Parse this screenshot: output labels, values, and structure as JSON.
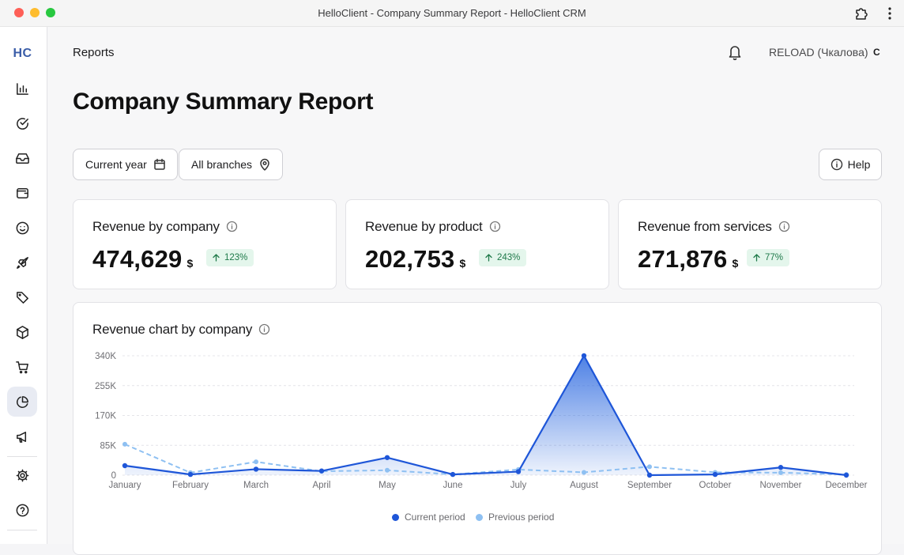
{
  "window": {
    "title": "HelloClient - Company Summary Report - HelloClient CRM"
  },
  "sidebar": {
    "logo": "HC",
    "items": [
      {
        "name": "analytics"
      },
      {
        "name": "tasks"
      },
      {
        "name": "inbox"
      },
      {
        "name": "wallet"
      },
      {
        "name": "clients"
      },
      {
        "name": "campaigns"
      },
      {
        "name": "tags"
      },
      {
        "name": "products"
      },
      {
        "name": "orders"
      },
      {
        "name": "reports",
        "active": true
      },
      {
        "name": "marketing"
      }
    ],
    "bottom_items": [
      {
        "name": "settings"
      },
      {
        "name": "help"
      }
    ]
  },
  "header": {
    "breadcrumb": "Reports",
    "user_name": "RELOAD (Чкалова)",
    "user_initial": "C"
  },
  "page": {
    "title": "Company Summary Report"
  },
  "filters": {
    "period": "Current year",
    "branches": "All branches",
    "help": "Help"
  },
  "kpis": [
    {
      "label": "Revenue by company",
      "value": "474,629",
      "unit": "$",
      "change": "123%"
    },
    {
      "label": "Revenue by product",
      "value": "202,753",
      "unit": "$",
      "change": "243%"
    },
    {
      "label": "Revenue from services",
      "value": "271,876",
      "unit": "$",
      "change": "77%"
    }
  ],
  "colors": {
    "current": "#1e56d8",
    "previous": "#8ec0f2",
    "badge_bg": "#e4f6ec",
    "badge_text": "#1f7a4a"
  },
  "chart_data": {
    "type": "line",
    "title": "Revenue chart by company",
    "categories": [
      "January",
      "February",
      "March",
      "April",
      "May",
      "June",
      "July",
      "August",
      "September",
      "October",
      "November",
      "December"
    ],
    "y_ticks": [
      "0",
      "85K",
      "170K",
      "255K",
      "340K"
    ],
    "ylim": [
      0,
      340000
    ],
    "series": [
      {
        "name": "Current period",
        "values": [
          27000,
          2000,
          17000,
          12000,
          50000,
          2000,
          10000,
          340000,
          0,
          2000,
          22000,
          0
        ]
      },
      {
        "name": "Previous period",
        "values": [
          88000,
          7000,
          38000,
          11000,
          14000,
          2000,
          16000,
          8000,
          24000,
          8000,
          7000,
          2000
        ]
      }
    ],
    "legend": "bottom",
    "grid": true
  }
}
